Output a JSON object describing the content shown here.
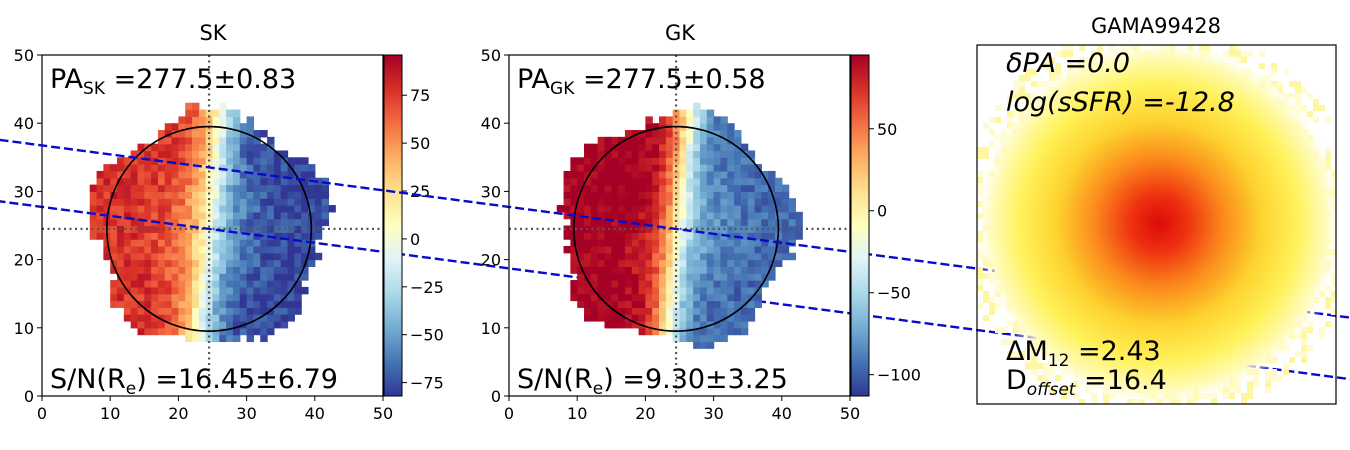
{
  "chart_data": [
    {
      "type": "heatmap",
      "title": "SK",
      "xlim": [
        0,
        50
      ],
      "ylim": [
        0,
        50
      ],
      "xticks": [
        "0",
        "10",
        "20",
        "30",
        "40",
        "50"
      ],
      "yticks": [
        "0",
        "10",
        "20",
        "30",
        "40",
        "50"
      ],
      "map_center": [
        24.5,
        24.5
      ],
      "circle_radius": 15,
      "pa_deg": 277.5,
      "pa_label": {
        "main": "PA",
        "sub": "SK",
        "value": " =277.5±0.83"
      },
      "sn_label": {
        "main": "S/N(R",
        "sub": "e",
        "value": ") =16.45±6.79"
      },
      "colorbar": {
        "vmin": -82,
        "vmax": 96,
        "ticks": [
          -75,
          -50,
          -25,
          0,
          25,
          50,
          75
        ],
        "tick_labels": [
          "−75",
          "−50",
          "−25",
          "0",
          "25",
          "50",
          "75"
        ]
      },
      "field": {
        "amp": 78,
        "skew": 0.1,
        "band": 3.5,
        "asym": 0.0
      }
    },
    {
      "type": "heatmap",
      "title": "GK",
      "xlim": [
        0,
        50
      ],
      "ylim": [
        0,
        50
      ],
      "xticks": [
        "0",
        "10",
        "20",
        "30",
        "40",
        "50"
      ],
      "yticks": [
        "0",
        "10",
        "20",
        "30",
        "40",
        "50"
      ],
      "map_center": [
        24.5,
        24.5
      ],
      "circle_radius": 15,
      "pa_deg": 277.5,
      "pa_label": {
        "main": "PA",
        "sub": "GK",
        "value": " =277.5±0.58"
      },
      "sn_label": {
        "main": "S/N(R",
        "sub": "e",
        "value": ") =9.30±3.25"
      },
      "colorbar": {
        "vmin": -113,
        "vmax": 95,
        "ticks": [
          -100,
          -50,
          0,
          50
        ],
        "tick_labels": [
          "−100",
          "−50",
          "0",
          "50"
        ]
      },
      "field": {
        "amp": 95,
        "skew": 0.1,
        "band": 2.8,
        "asym": 10
      }
    }
  ],
  "image_panel": {
    "title": "GAMA99428",
    "dpa_label": "δPA =0.0",
    "ssfr_label": "log(sSFR) =-12.8",
    "dm_label": {
      "main": "ΔM",
      "sub": "12",
      "value": " =2.43"
    },
    "doff_label": {
      "main": "D",
      "sub": "offset",
      "value": " =16.4"
    }
  }
}
